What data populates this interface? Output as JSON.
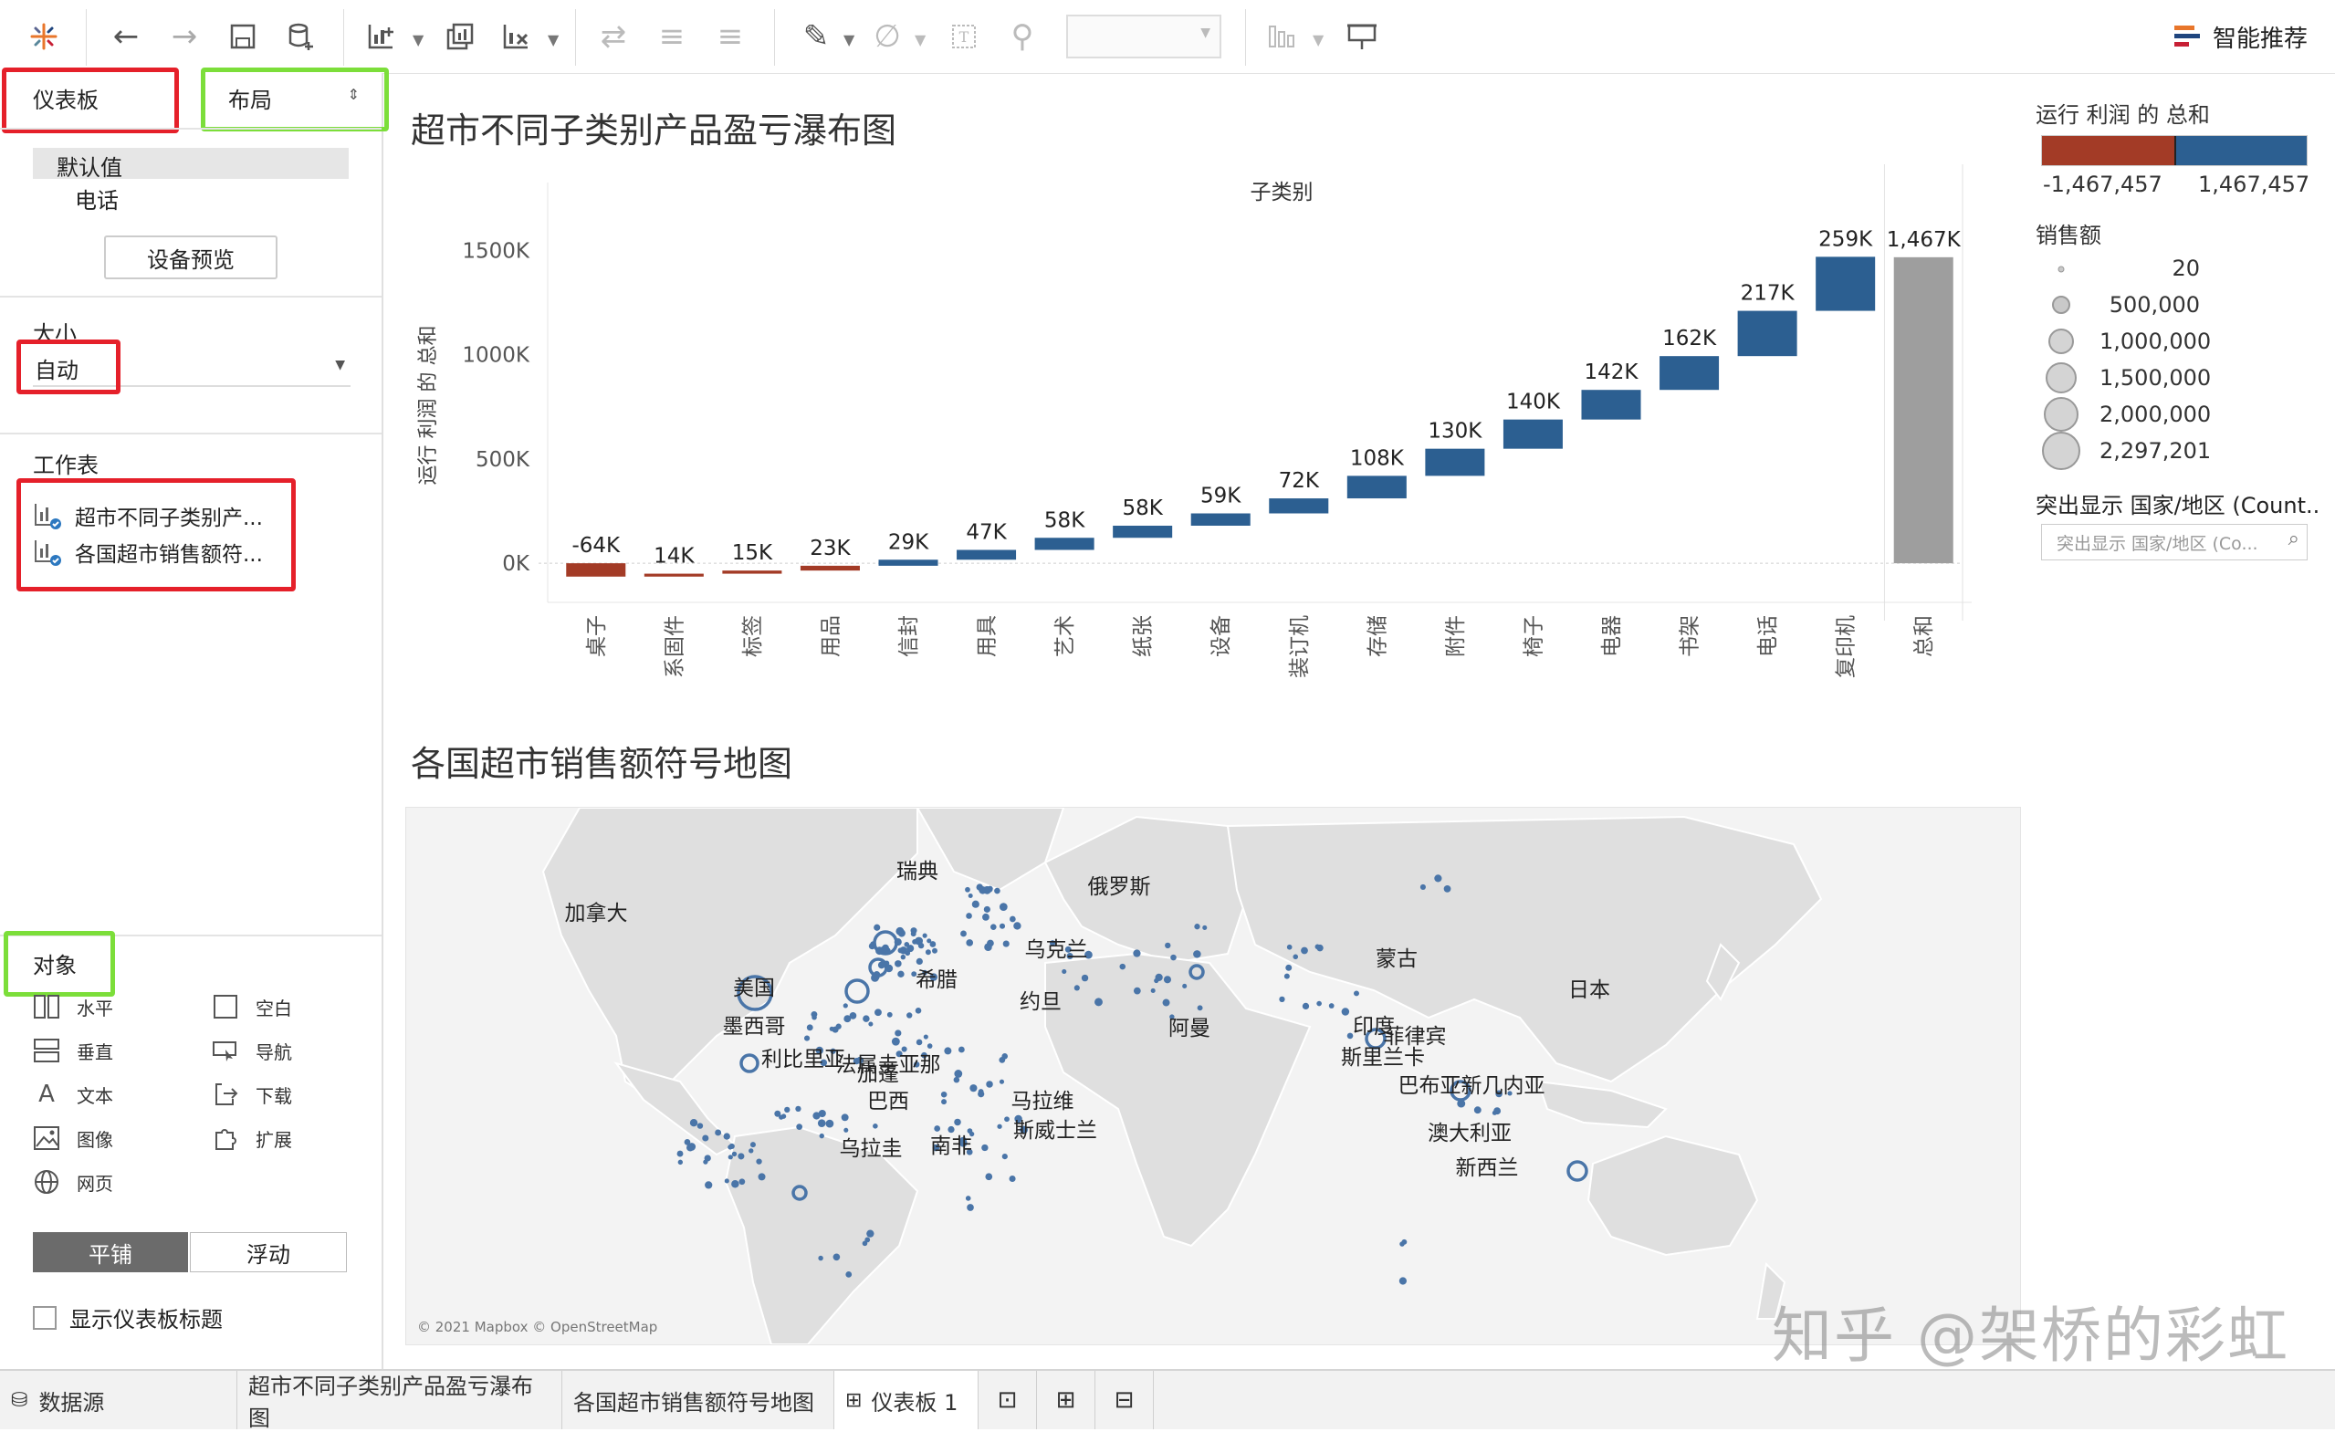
{
  "toolbar": {
    "smart_recommend": "智能推荐",
    "field_value": ""
  },
  "left": {
    "dashboard_tab": "仪表板",
    "layout_tab": "布局",
    "device_default": "默认值",
    "device_phone": "电话",
    "device_preview": "设备预览",
    "size_label": "大小",
    "size_value": "自动",
    "worksheets_label": "工作表",
    "worksheets": [
      "超市不同子类别产...",
      "各国超市销售额符..."
    ],
    "objects_label": "对象",
    "objects": [
      {
        "label": "水平",
        "icon": "horizontal-icon"
      },
      {
        "label": "空白",
        "icon": "blank-icon"
      },
      {
        "label": "垂直",
        "icon": "vertical-icon"
      },
      {
        "label": "导航",
        "icon": "navigation-icon"
      },
      {
        "label": "文本",
        "icon": "text-icon"
      },
      {
        "label": "下载",
        "icon": "download-icon"
      },
      {
        "label": "图像",
        "icon": "image-icon"
      },
      {
        "label": "扩展",
        "icon": "extension-icon"
      },
      {
        "label": "网页",
        "icon": "webpage-icon"
      }
    ],
    "tile_label": "平铺",
    "float_label": "浮动",
    "show_title_label": "显示仪表板标题"
  },
  "tabs": [
    "数据源",
    "超市不同子类别产品盈亏瀑布图",
    "各国超市销售额符号地图",
    "仪表板 1"
  ],
  "chart_data": {
    "type": "bar",
    "title": "超市不同子类别产品盈亏瀑布图",
    "xlabel": "子类别",
    "ylabel": "运行 利润 的 总和",
    "yticks": [
      "1500K",
      "1000K",
      "500K",
      "0K"
    ],
    "ylim": [
      -100000,
      1650000
    ],
    "categories": [
      "桌子",
      "系固件",
      "标签",
      "用品",
      "信封",
      "用具",
      "艺术",
      "纸张",
      "设备",
      "装订机",
      "存储",
      "附件",
      "椅子",
      "电器",
      "书架",
      "电话",
      "复印机",
      "总和"
    ],
    "values": [
      -64000,
      14000,
      15000,
      23000,
      29000,
      47000,
      58000,
      58000,
      59000,
      72000,
      108000,
      130000,
      140000,
      142000,
      162000,
      217000,
      259000,
      1467000
    ],
    "labels": [
      "-64K",
      "14K",
      "15K",
      "23K",
      "29K",
      "47K",
      "58K",
      "58K",
      "59K",
      "72K",
      "108K",
      "130K",
      "140K",
      "142K",
      "162K",
      "217K",
      "259K",
      "1,467K"
    ],
    "colors": {
      "negative": "#a33b26",
      "positive": "#2c5f91",
      "total": "#9e9e9e"
    }
  },
  "legend": {
    "profit_title": "运行 利润 的 总和",
    "profit_min": "-1,467,457",
    "profit_max": "1,467,457",
    "sales_title": "销售额",
    "sales_items": [
      "20",
      "500,000",
      "1,000,000",
      "1,500,000",
      "2,000,000",
      "2,297,201"
    ],
    "highlight_title": "突出显示 国家/地区 (Count..",
    "highlight_placeholder": "突出显示 国家/地区 (Co..."
  },
  "map": {
    "title": "各国超市销售额符号地图",
    "attribution": "© 2021 Mapbox © OpenStreetMap",
    "labels": [
      "瑞典",
      "俄罗斯",
      "加拿大",
      "乌克兰",
      "蒙古",
      "美国",
      "希腊",
      "日本",
      "约旦",
      "阿曼",
      "印度",
      "墨西哥",
      "菲律宾",
      "利比里亚",
      "斯里兰卡",
      "法属圭亚那",
      "加蓬",
      "巴布亚新几内亚",
      "巴西",
      "马拉维",
      "澳大利亚",
      "斯威士兰",
      "南非",
      "乌拉圭",
      "新西兰"
    ]
  },
  "watermark": "知乎 @架桥的彩虹"
}
